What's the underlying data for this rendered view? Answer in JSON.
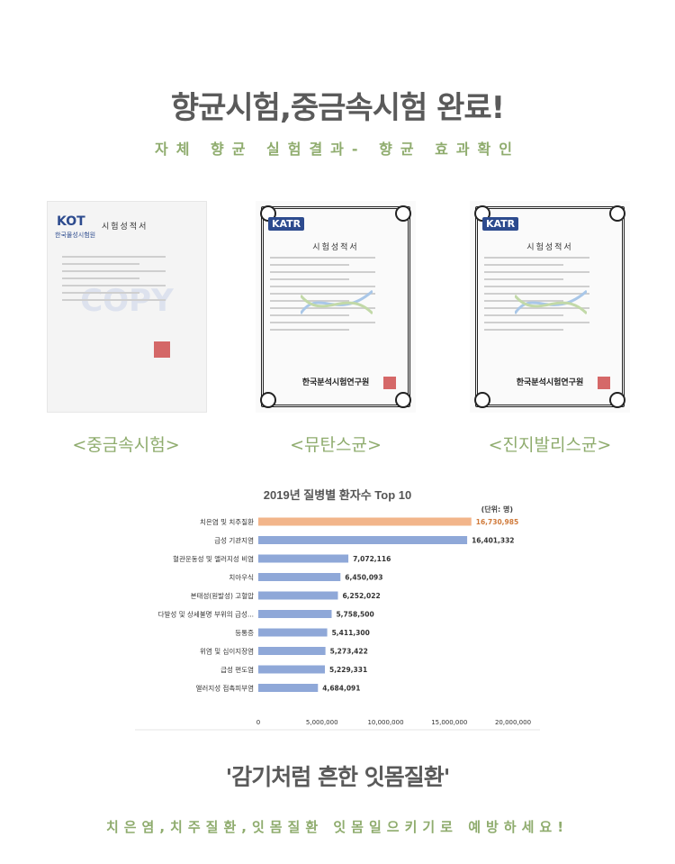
{
  "headline": "향균시험,중금속시험 완료!",
  "subheadline": "자체 향균 실험결과- 향균 효과확인",
  "certificates": [
    {
      "logo": "KOT",
      "logo_sub": "한국물성시험원",
      "title": "시험성적서",
      "watermark": "COPY",
      "label": "<중금속시험>"
    },
    {
      "logo": "KATR",
      "title": "시험성적서",
      "org": "한국분석시험연구원",
      "label": "<뮤탄스균>"
    },
    {
      "logo": "KATR",
      "title": "시험성적서",
      "org": "한국분석시험연구원",
      "label": "<진지발리스균>"
    }
  ],
  "chart_data": {
    "type": "bar",
    "orientation": "horizontal",
    "title": "2019년 질병별 환자수 Top 10",
    "unit_label": "(단위: 명)",
    "categories": [
      "치은염 및 치주질환",
      "급성 기관지염",
      "혈관운동성 및 앨러지성 비염",
      "치아우식",
      "본태성(원발성) 고혈압",
      "다발성 및 상세불명 부위의 급성...",
      "등통증",
      "위염 및 십이지장염",
      "급성 편도염",
      "앨러지성 접촉피부염"
    ],
    "values": [
      16730985,
      16401332,
      7072116,
      6450093,
      6252022,
      5758500,
      5411300,
      5273422,
      5229331,
      4684091
    ],
    "value_labels": [
      "16,730,985",
      "16,401,332",
      "7,072,116",
      "6,450,093",
      "6,252,022",
      "5,758,500",
      "5,411,300",
      "5,273,422",
      "5,229,331",
      "4,684,091"
    ],
    "x_ticks": [
      "0",
      "5,000,000",
      "10,000,000",
      "15,000,000",
      "20,000,000"
    ],
    "xlim": [
      0,
      20000000
    ],
    "highlight_color": "#f2b58a",
    "bar_color": "#8fa8d8",
    "grid": false
  },
  "slogan": "'감기처럼 흔한 잇몸질환'",
  "footer": "치은염,치주질환,잇몸질환 잇몸일으키기로 예방하세요!"
}
